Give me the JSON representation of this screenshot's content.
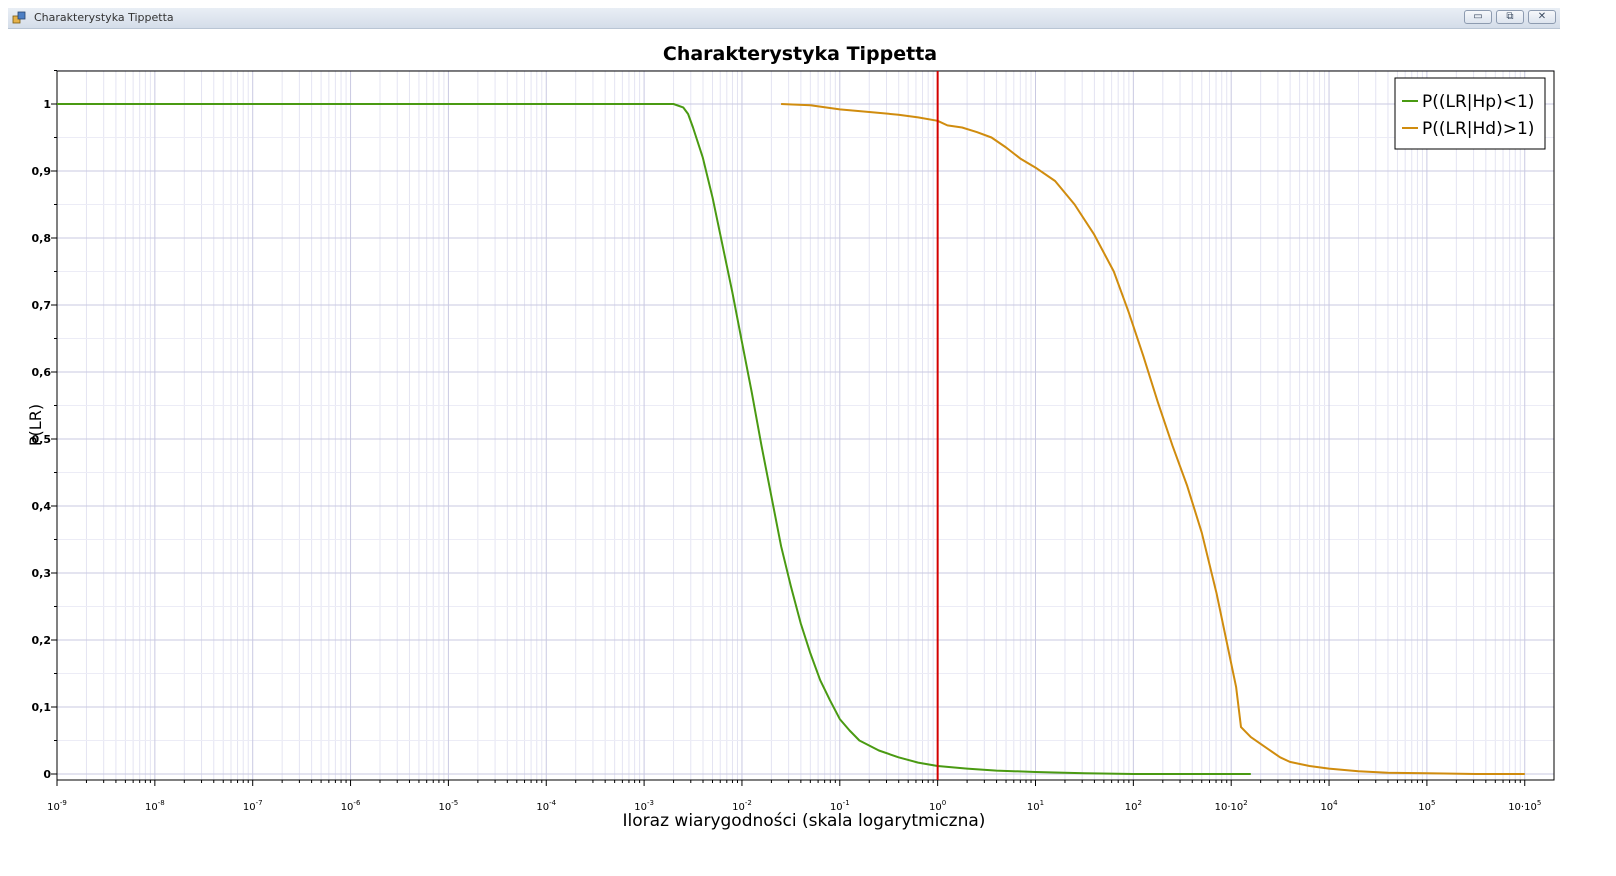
{
  "window": {
    "title": "Charakterystyka Tippetta",
    "icon": "app-icon",
    "minimize_label": "▭",
    "restore_label": "⧉",
    "close_label": "✕"
  },
  "chart_data": {
    "type": "line",
    "title": "Charakterystyka Tippetta",
    "xlabel": "Iloraz wiarygodności (skala logarytmiczna)",
    "ylabel": "P(LR)",
    "xscale": "log",
    "xlim_exp": [
      -9,
      6
    ],
    "ylim": [
      -0.03,
      1.05
    ],
    "grid": true,
    "legend_position": "top-right",
    "y_ticks": [
      {
        "value": 0,
        "label": "0"
      },
      {
        "value": 0.1,
        "label": "0,1"
      },
      {
        "value": 0.2,
        "label": "0,2"
      },
      {
        "value": 0.3,
        "label": "0,3"
      },
      {
        "value": 0.4,
        "label": "0,4"
      },
      {
        "value": 0.5,
        "label": "0,5"
      },
      {
        "value": 0.6,
        "label": "0,6"
      },
      {
        "value": 0.7,
        "label": "0,7"
      },
      {
        "value": 0.8,
        "label": "0,8"
      },
      {
        "value": 0.9,
        "label": "0,9"
      },
      {
        "value": 1.0,
        "label": "1"
      }
    ],
    "x_ticks": [
      {
        "exp": -9,
        "base": "10",
        "sup": "-9"
      },
      {
        "exp": -8,
        "base": "10",
        "sup": "-8"
      },
      {
        "exp": -7,
        "base": "10",
        "sup": "-7"
      },
      {
        "exp": -6,
        "base": "10",
        "sup": "-6"
      },
      {
        "exp": -5,
        "base": "10",
        "sup": "-5"
      },
      {
        "exp": -4,
        "base": "10",
        "sup": "-4"
      },
      {
        "exp": -3,
        "base": "10",
        "sup": "-3"
      },
      {
        "exp": -2,
        "base": "10",
        "sup": "-2"
      },
      {
        "exp": -1,
        "base": "10",
        "sup": "-1"
      },
      {
        "exp": 0,
        "base": "10",
        "sup": "0"
      },
      {
        "exp": 1,
        "base": "10",
        "sup": "1"
      },
      {
        "exp": 2,
        "base": "10",
        "sup": "2"
      },
      {
        "exp": 3,
        "base": "10·10",
        "sup": "2"
      },
      {
        "exp": 4,
        "base": "10",
        "sup": "4"
      },
      {
        "exp": 5,
        "base": "10",
        "sup": "5"
      },
      {
        "exp": 6,
        "base": "10·10",
        "sup": "5"
      }
    ],
    "vertical_marker": {
      "x_exp": 0,
      "color": "#d40000"
    },
    "series": [
      {
        "name": "P((LR|Hp)<1)",
        "color": "#4a9a12",
        "points": [
          [
            -9.0,
            1.0
          ],
          [
            -4.0,
            1.0
          ],
          [
            -3.0,
            1.0
          ],
          [
            -2.7,
            1.0
          ],
          [
            -2.6,
            0.995
          ],
          [
            -2.55,
            0.985
          ],
          [
            -2.5,
            0.965
          ],
          [
            -2.4,
            0.92
          ],
          [
            -2.3,
            0.86
          ],
          [
            -2.2,
            0.79
          ],
          [
            -2.1,
            0.72
          ],
          [
            -2.0,
            0.645
          ],
          [
            -1.9,
            0.57
          ],
          [
            -1.8,
            0.49
          ],
          [
            -1.7,
            0.415
          ],
          [
            -1.6,
            0.34
          ],
          [
            -1.5,
            0.28
          ],
          [
            -1.4,
            0.225
          ],
          [
            -1.3,
            0.18
          ],
          [
            -1.2,
            0.14
          ],
          [
            -1.1,
            0.11
          ],
          [
            -1.0,
            0.082
          ],
          [
            -0.9,
            0.065
          ],
          [
            -0.8,
            0.05
          ],
          [
            -0.6,
            0.035
          ],
          [
            -0.4,
            0.025
          ],
          [
            -0.2,
            0.017
          ],
          [
            0.0,
            0.012
          ],
          [
            0.3,
            0.008
          ],
          [
            0.6,
            0.005
          ],
          [
            1.0,
            0.003
          ],
          [
            1.5,
            0.001
          ],
          [
            2.0,
            0.0
          ],
          [
            3.2,
            0.0
          ]
        ]
      },
      {
        "name": "P((LR|Hd)>1)",
        "color": "#d08c0e",
        "points": [
          [
            -1.6,
            1.0
          ],
          [
            -1.3,
            0.998
          ],
          [
            -1.0,
            0.992
          ],
          [
            -0.7,
            0.988
          ],
          [
            -0.4,
            0.984
          ],
          [
            -0.2,
            0.98
          ],
          [
            0.0,
            0.975
          ],
          [
            0.1,
            0.968
          ],
          [
            0.25,
            0.965
          ],
          [
            0.4,
            0.958
          ],
          [
            0.55,
            0.95
          ],
          [
            0.7,
            0.935
          ],
          [
            0.85,
            0.918
          ],
          [
            1.0,
            0.905
          ],
          [
            1.2,
            0.885
          ],
          [
            1.4,
            0.85
          ],
          [
            1.6,
            0.805
          ],
          [
            1.8,
            0.75
          ],
          [
            1.95,
            0.69
          ],
          [
            2.1,
            0.625
          ],
          [
            2.25,
            0.555
          ],
          [
            2.4,
            0.49
          ],
          [
            2.55,
            0.43
          ],
          [
            2.7,
            0.36
          ],
          [
            2.85,
            0.27
          ],
          [
            2.95,
            0.2
          ],
          [
            3.05,
            0.13
          ],
          [
            3.1,
            0.07
          ],
          [
            3.2,
            0.055
          ],
          [
            3.35,
            0.04
          ],
          [
            3.5,
            0.025
          ],
          [
            3.6,
            0.018
          ],
          [
            3.8,
            0.012
          ],
          [
            4.0,
            0.008
          ],
          [
            4.3,
            0.004
          ],
          [
            4.6,
            0.002
          ],
          [
            5.0,
            0.001
          ],
          [
            5.5,
            0.0
          ],
          [
            6.0,
            0.0
          ]
        ]
      }
    ]
  }
}
